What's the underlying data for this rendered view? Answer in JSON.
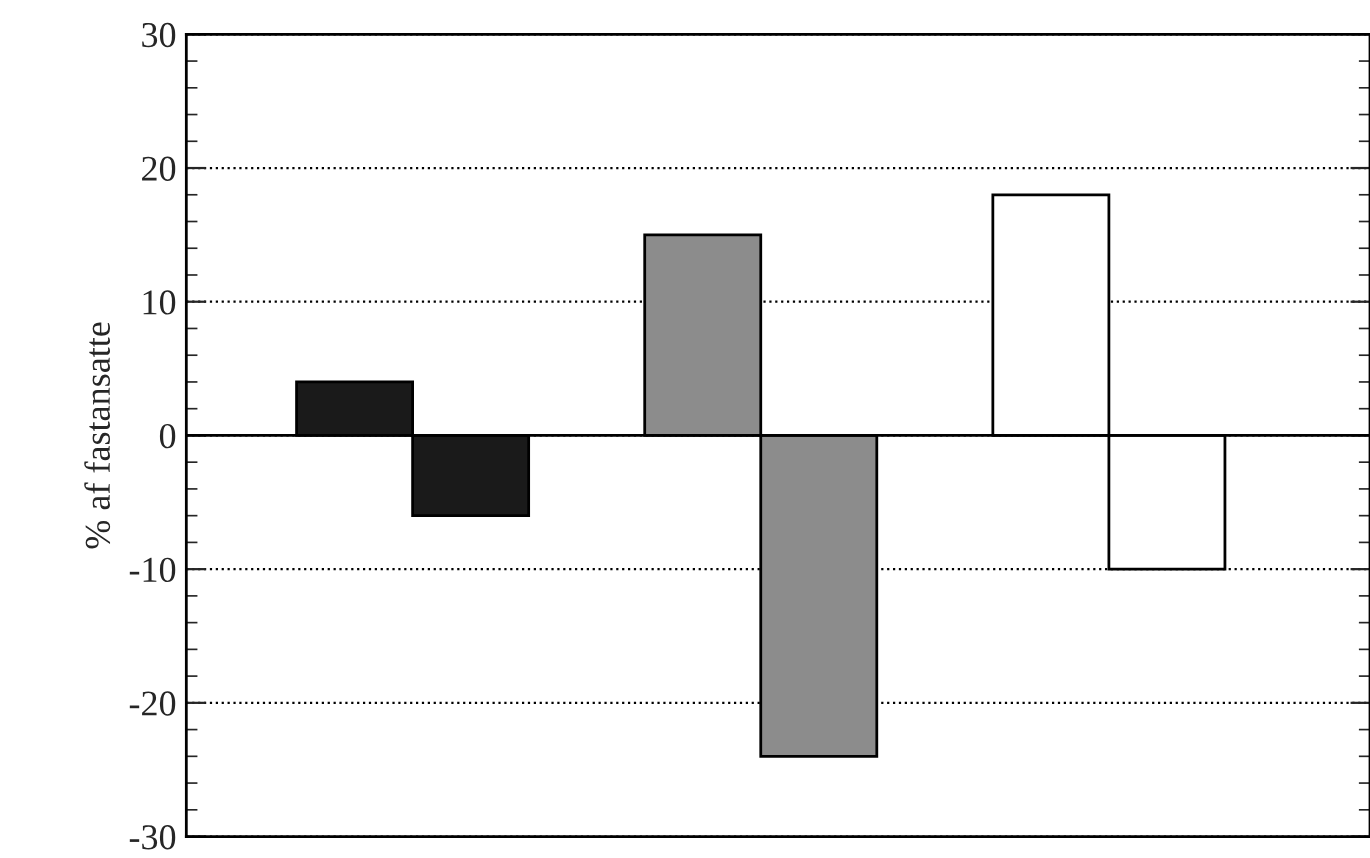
{
  "chart_data": {
    "type": "bar",
    "ylabel": "% af fastansatte",
    "categories": [
      null,
      null,
      null
    ],
    "series": [
      {
        "colors": [
          "#1a1a1a",
          "#8c8c8c",
          "#ffffff"
        ],
        "values": [
          4,
          15,
          18
        ]
      },
      {
        "colors": [
          "#1a1a1a",
          "#8c8c8c",
          "#ffffff"
        ],
        "values": [
          -6,
          -24,
          -10
        ]
      }
    ],
    "ylim": [
      -30,
      30
    ],
    "yticks": [
      -30,
      -20,
      -10,
      0,
      10,
      20,
      30
    ],
    "grid": "y",
    "legend": false,
    "ref_lines": [
      {
        "axis": "y",
        "value": 0,
        "line_style": "solid",
        "color": "#000000"
      }
    ]
  }
}
